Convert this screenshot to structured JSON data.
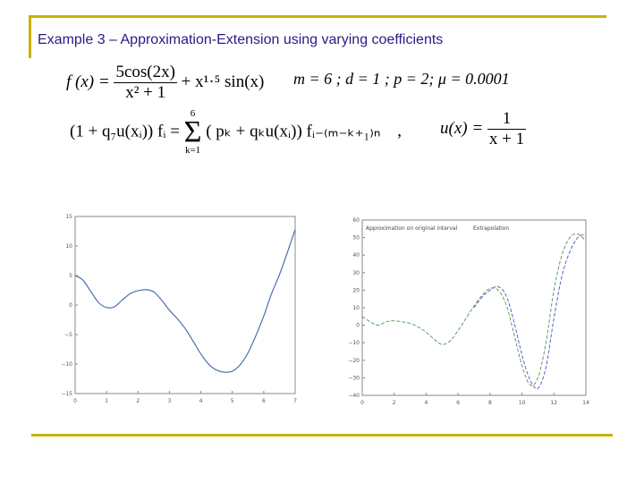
{
  "slide": {
    "title": "Example 3 – Approximation-Extension using varying coefficients"
  },
  "formulas": {
    "fx_lhs": "f (x) =",
    "fx_num": "5cos(2x)",
    "fx_den": "x² + 1",
    "fx_tail": "+ x¹·⁵ sin(x)",
    "params": "m = 6 ;   d = 1 ;   p = 2;     μ = 0.0001",
    "scheme_lhs": "(1 + q₇u(xᵢ)) fᵢ =",
    "sigma_top": "6",
    "sigma_bottom": "k=1",
    "scheme_rhs": "( pₖ + qₖu(xᵢ)) fᵢ₋₍ₘ₋ₖ₊₁₎ₙ",
    "comma": ",",
    "ux_lhs": "u(x) =",
    "ux_num": "1",
    "ux_den": "x + 1"
  },
  "colors": {
    "accent_rule": "#c8b400",
    "title": "#2a1a86",
    "series_blue": "#4a6fb0",
    "series_green": "#5fa05f",
    "series_purple": "#6a5acd"
  },
  "chart_data": [
    {
      "type": "line",
      "xlim": [
        0,
        7
      ],
      "ylim": [
        -15,
        15
      ],
      "x_ticks": [
        0,
        1,
        2,
        3,
        4,
        5,
        6,
        7
      ],
      "y_ticks": [
        15,
        10,
        5,
        0,
        -5,
        -10,
        -15
      ],
      "x_tick_labels": [
        "0",
        "1",
        "2",
        "3",
        "4",
        "5",
        "6",
        "7"
      ],
      "y_tick_labels": [
        "15",
        "10",
        "5",
        "0",
        "−5",
        "−10",
        "−15"
      ],
      "series": [
        {
          "x": [
            0,
            0.25,
            0.5,
            0.75,
            1.0,
            1.25,
            1.5,
            1.75,
            2.0,
            2.25,
            2.5,
            2.75,
            3.0,
            3.25,
            3.5,
            3.75,
            4.0,
            4.25,
            4.5,
            4.75,
            5.0,
            5.25,
            5.5,
            5.75,
            6.0,
            6.25,
            6.5,
            6.75,
            7.0
          ],
          "y": [
            5.0,
            4.19,
            2.27,
            0.38,
            -0.42,
            -0.3,
            0.85,
            1.91,
            2.41,
            2.59,
            2.22,
            0.83,
            -0.88,
            -2.31,
            -3.98,
            -6.09,
            -8.29,
            -10.05,
            -11.01,
            -11.38,
            -11.2,
            -10.14,
            -8.09,
            -5.19,
            -1.86,
            1.92,
            5.14,
            8.87,
            12.79
          ]
        }
      ]
    },
    {
      "type": "line",
      "xlim": [
        0,
        14
      ],
      "ylim": [
        -40,
        60
      ],
      "x_ticks": [
        0,
        2,
        4,
        6,
        8,
        10,
        12,
        14
      ],
      "y_ticks": [
        60,
        50,
        40,
        30,
        20,
        10,
        0,
        -10,
        -20,
        -30,
        -40
      ],
      "x_tick_labels": [
        "0",
        "2",
        "4",
        "6",
        "8",
        "10",
        "12",
        "14"
      ],
      "y_tick_labels": [
        "60",
        "50",
        "40",
        "30",
        "20",
        "10",
        "0",
        "−10",
        "−20",
        "−30",
        "−40"
      ],
      "annotations": [
        "Approximation on original interval",
        "Extrapolation"
      ],
      "series": [
        {
          "x": [
            0,
            0.5,
            1,
            1.5,
            2,
            2.5,
            3,
            3.5,
            4,
            4.5,
            5,
            5.5,
            6,
            6.5,
            7,
            7.5,
            8,
            8.5,
            9,
            9.5,
            10,
            10.5,
            11,
            11.5,
            12,
            12.5,
            13,
            13.5,
            14
          ],
          "y": [
            5,
            2,
            0,
            2,
            2.5,
            2,
            1,
            -1,
            -4,
            -8,
            -11,
            -9,
            -3,
            4,
            11,
            17,
            21,
            20,
            12,
            -5,
            -23,
            -34,
            -30,
            -10,
            20,
            40,
            50,
            52,
            48
          ]
        },
        {
          "x": [
            7,
            7.5,
            8,
            8.5,
            9,
            9.5,
            10,
            10.5,
            11,
            11.5,
            12,
            12.5,
            13,
            13.5,
            14
          ],
          "y": [
            10,
            16,
            20,
            22,
            17,
            2,
            -17,
            -31,
            -36,
            -24,
            4,
            28,
            42,
            50,
            52
          ]
        }
      ]
    }
  ]
}
